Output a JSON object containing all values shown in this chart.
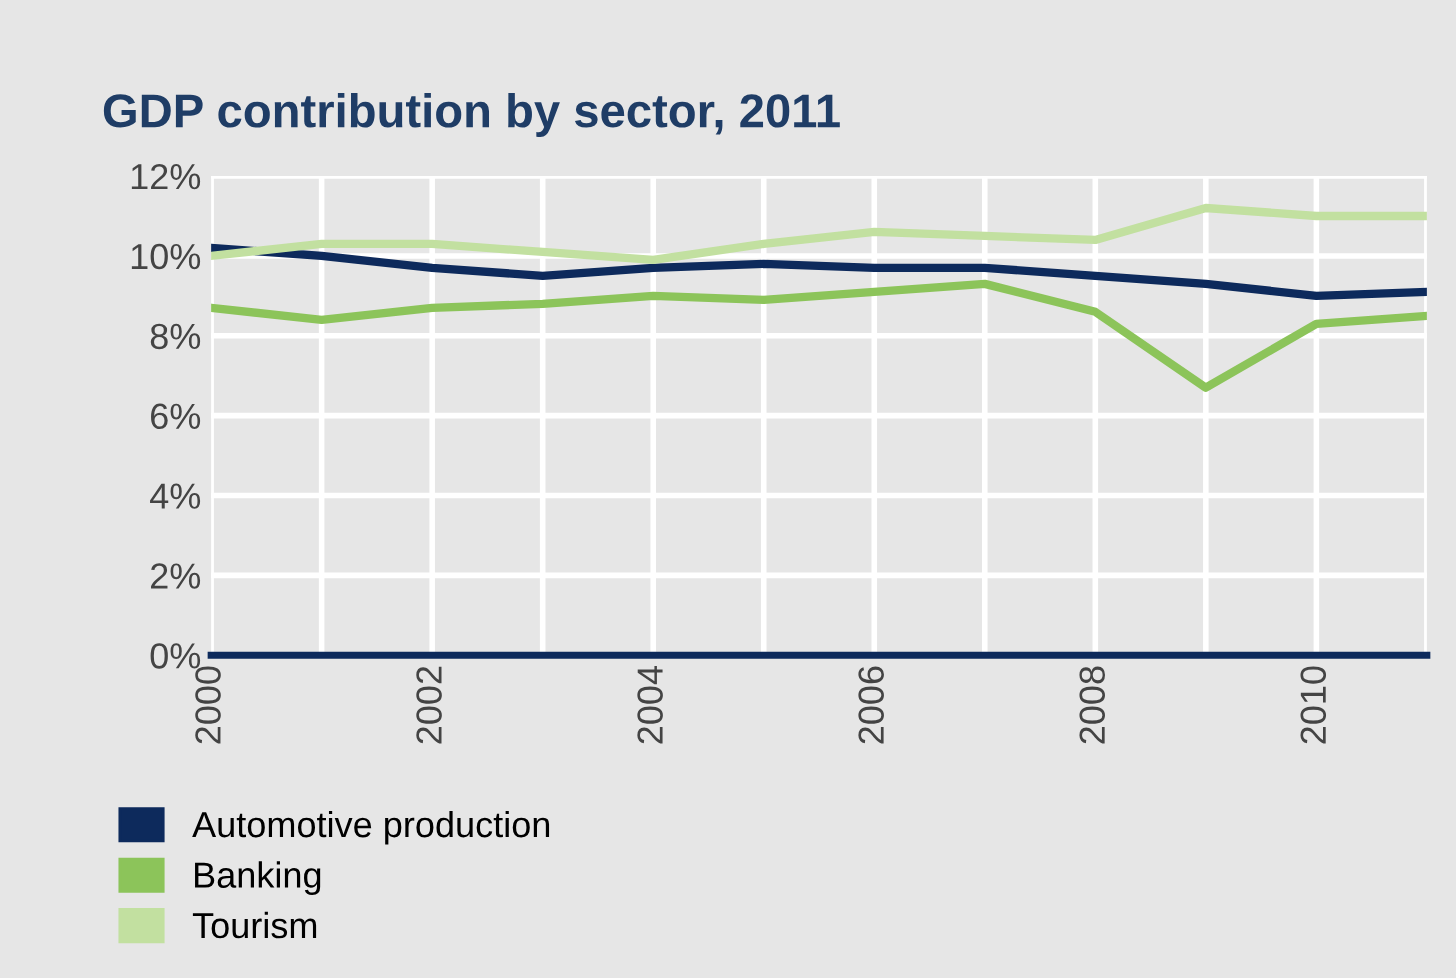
{
  "chart_data": {
    "type": "line",
    "title": "GDP contribution by sector, 2011",
    "x": [
      2000,
      2001,
      2002,
      2003,
      2004,
      2005,
      2006,
      2007,
      2008,
      2009,
      2010,
      2011
    ],
    "series": [
      {
        "name": "Automotive production",
        "color": "#0d2a5c",
        "values": [
          10.2,
          10.0,
          9.7,
          9.5,
          9.7,
          9.8,
          9.7,
          9.7,
          9.5,
          9.3,
          9.0,
          9.1
        ]
      },
      {
        "name": "Banking",
        "color": "#8cc45a",
        "values": [
          8.7,
          8.4,
          8.7,
          8.8,
          9.0,
          8.9,
          9.1,
          9.3,
          8.6,
          6.7,
          8.3,
          8.5
        ]
      },
      {
        "name": "Tourism",
        "color": "#c2e0a0",
        "values": [
          10.0,
          10.3,
          10.3,
          10.1,
          9.9,
          10.3,
          10.6,
          10.5,
          10.4,
          11.2,
          11.0,
          11.0
        ]
      }
    ],
    "xlim": [
      2000,
      2011
    ],
    "xticks": [
      2000,
      {
        "value": 2001,
        "label": null
      },
      2002,
      {
        "value": 2003,
        "label": null
      },
      2004,
      {
        "value": 2005,
        "label": null
      },
      2006,
      {
        "value": 2007,
        "label": null
      },
      2008,
      {
        "value": 2009,
        "label": null
      },
      2010,
      {
        "value": 2011,
        "label": null
      }
    ],
    "ylim": [
      0,
      12
    ],
    "yticks": [
      {
        "value": 0,
        "label": "0%"
      },
      {
        "value": 2,
        "label": "2%"
      },
      {
        "value": 4,
        "label": "4%"
      },
      {
        "value": 6,
        "label": "6%"
      },
      {
        "value": 8,
        "label": "8%"
      },
      {
        "value": 10,
        "label": "10%"
      },
      {
        "value": 12,
        "label": "12%"
      }
    ],
    "grid": true,
    "legend": "bottom left",
    "marker": "none",
    "line_style": "solid"
  }
}
